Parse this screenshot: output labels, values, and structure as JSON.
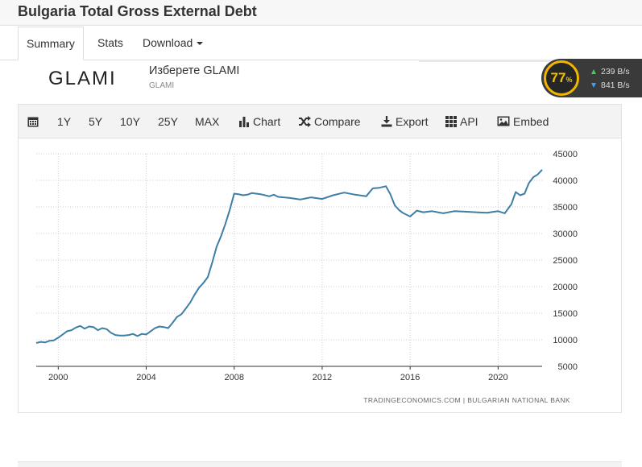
{
  "page": {
    "title": "Bulgaria Total Gross External Debt"
  },
  "tabs": [
    {
      "label": "Summary"
    },
    {
      "label": "Stats"
    },
    {
      "label": "Download"
    }
  ],
  "ad": {
    "logo": "GLAMI",
    "title": "Изберете GLAMI",
    "subtitle": "GLAMI"
  },
  "netmon": {
    "percent": "77",
    "percent_symbol": "%",
    "upload": "239 B/s",
    "download": "841 B/s"
  },
  "toolbar": {
    "ranges": [
      "1Y",
      "5Y",
      "10Y",
      "25Y",
      "MAX"
    ],
    "chart": "Chart",
    "compare": "Compare",
    "export": "Export",
    "api": "API",
    "embed": "Embed"
  },
  "chart_data": {
    "type": "line",
    "title": "Bulgaria Total Gross External Debt",
    "xlabel": "",
    "ylabel": "",
    "x_ticks": [
      "2000",
      "2004",
      "2008",
      "2012",
      "2016",
      "2020"
    ],
    "y_ticks": [
      "5000",
      "10000",
      "15000",
      "20000",
      "25000",
      "30000",
      "35000",
      "40000",
      "45000"
    ],
    "ylim": [
      5000,
      45000
    ],
    "xlim": [
      1999.0,
      2022.0
    ],
    "source": "TRADINGECONOMICS.COM | BULGARIAN NATIONAL BANK",
    "color": "#3d7fa6",
    "series": [
      {
        "name": "Bulgaria Total Gross External Debt",
        "x": [
          1999.0,
          1999.2,
          1999.4,
          1999.6,
          1999.8,
          2000.0,
          2000.2,
          2000.4,
          2000.6,
          2000.8,
          2001.0,
          2001.2,
          2001.4,
          2001.6,
          2001.8,
          2002.0,
          2002.2,
          2002.4,
          2002.6,
          2002.8,
          2003.0,
          2003.2,
          2003.4,
          2003.6,
          2003.8,
          2004.0,
          2004.2,
          2004.4,
          2004.6,
          2004.8,
          2005.0,
          2005.2,
          2005.4,
          2005.6,
          2005.8,
          2006.0,
          2006.2,
          2006.4,
          2006.6,
          2006.8,
          2007.0,
          2007.2,
          2007.4,
          2007.6,
          2007.8,
          2008.0,
          2008.2,
          2008.4,
          2008.6,
          2008.8,
          2009.0,
          2009.2,
          2009.4,
          2009.6,
          2009.8,
          2010.0,
          2010.5,
          2011.0,
          2011.5,
          2012.0,
          2012.5,
          2013.0,
          2013.5,
          2014.0,
          2014.3,
          2014.6,
          2014.9,
          2015.1,
          2015.3,
          2015.5,
          2015.7,
          2016.0,
          2016.3,
          2016.6,
          2017.0,
          2017.5,
          2018.0,
          2018.5,
          2019.0,
          2019.5,
          2020.0,
          2020.3,
          2020.6,
          2020.8,
          2021.0,
          2021.2,
          2021.4,
          2021.6,
          2021.8,
          2022.0
        ],
        "values": [
          9400,
          9600,
          9500,
          9800,
          9900,
          10400,
          11000,
          11600,
          11800,
          12300,
          12600,
          12100,
          12500,
          12400,
          11800,
          12200,
          12000,
          11300,
          10900,
          10800,
          10800,
          10900,
          11100,
          10700,
          11100,
          11000,
          11600,
          12200,
          12500,
          12400,
          12200,
          13200,
          14300,
          14800,
          15900,
          17000,
          18500,
          19800,
          20700,
          21800,
          24500,
          27500,
          29500,
          31800,
          34500,
          37500,
          37400,
          37200,
          37300,
          37600,
          37500,
          37400,
          37200,
          37000,
          37300,
          36900,
          36700,
          36400,
          36800,
          36500,
          37200,
          37700,
          37300,
          37000,
          38500,
          38600,
          38900,
          37400,
          35300,
          34400,
          33800,
          33200,
          34300,
          34000,
          34200,
          33800,
          34200,
          34100,
          34000,
          33900,
          34200,
          33800,
          35500,
          37800,
          37200,
          37500,
          39500,
          40600,
          41100,
          42000
        ]
      }
    ]
  }
}
